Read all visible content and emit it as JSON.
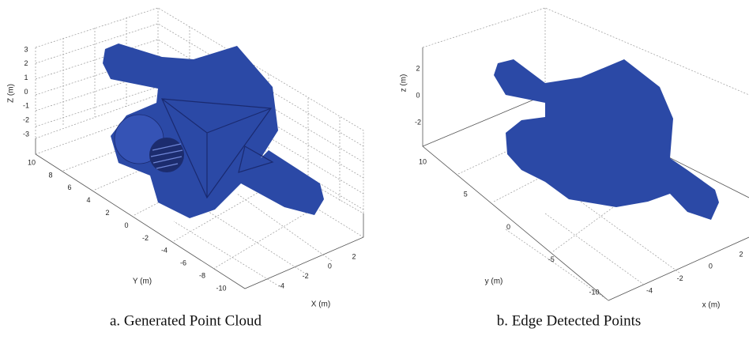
{
  "panels": [
    {
      "caption": "a. Generated Point Cloud",
      "z_axis": {
        "label": "Z (m)",
        "ticks": [
          "3",
          "2",
          "1",
          "0",
          "-1",
          "-2",
          "-3"
        ]
      },
      "y_axis": {
        "label": "Y (m)",
        "ticks": [
          "10",
          "8",
          "6",
          "4",
          "2",
          "0",
          "-2",
          "-4",
          "-6",
          "-8",
          "-10"
        ]
      },
      "x_axis": {
        "label": "X (m)",
        "ticks": [
          "-4",
          "-2",
          "0",
          "2"
        ]
      }
    },
    {
      "caption": "b. Edge Detected Points",
      "z_axis": {
        "label": "z (m)",
        "ticks": [
          "2",
          "0",
          "-2"
        ]
      },
      "y_axis": {
        "label": "y (m)",
        "ticks": [
          "10",
          "5",
          "0",
          "-5",
          "-10"
        ]
      },
      "x_axis": {
        "label": "x (m)",
        "ticks": [
          "-4",
          "-2",
          "0",
          "2"
        ]
      }
    }
  ]
}
